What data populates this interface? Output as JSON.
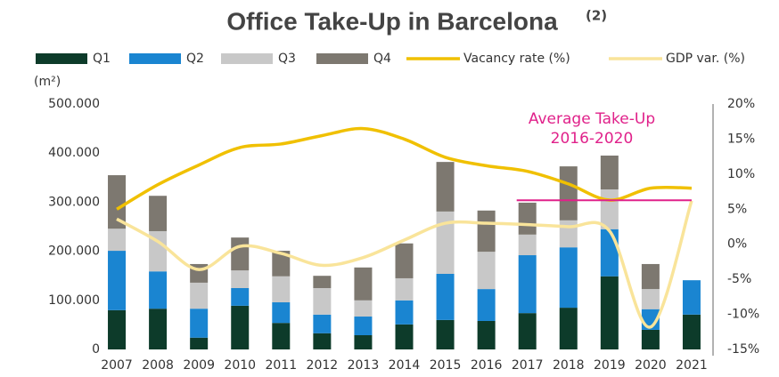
{
  "chart_data": {
    "type": "bar",
    "stacked": true,
    "title": "Office Take-Up in Barcelona",
    "title_note": "(2)",
    "y_unit": "(m²)",
    "categories": [
      "2007",
      "2008",
      "2009",
      "2010",
      "2011",
      "2012",
      "2013",
      "2014",
      "2015",
      "2016",
      "2017",
      "2018",
      "2019",
      "2020",
      "2021"
    ],
    "series": [
      {
        "name": "Q1",
        "color": "#0d3b2a",
        "values": [
          80000,
          83000,
          24000,
          89000,
          54000,
          33000,
          29000,
          51000,
          60000,
          58000,
          74000,
          85000,
          149000,
          40000,
          71000
        ]
      },
      {
        "name": "Q2",
        "color": "#1a85d1",
        "values": [
          121000,
          76000,
          59000,
          36000,
          42000,
          38000,
          38000,
          49000,
          94000,
          65000,
          118000,
          123000,
          96000,
          42000,
          70000
        ]
      },
      {
        "name": "Q3",
        "color": "#c8c8c8",
        "values": [
          45000,
          82000,
          53000,
          36000,
          53000,
          54000,
          33000,
          45000,
          127000,
          76000,
          42000,
          55000,
          81000,
          41000,
          null
        ]
      },
      {
        "name": "Q4",
        "color": "#7d7870",
        "values": [
          109000,
          72000,
          38000,
          67000,
          52000,
          25000,
          67000,
          71000,
          101000,
          84000,
          65000,
          110000,
          69000,
          51000,
          null
        ]
      },
      {
        "name": "Vacancy rate (%)",
        "color": "#f0c000",
        "type": "line",
        "axis": "y2",
        "values": [
          5,
          8.5,
          11.3,
          13.8,
          14.3,
          15.5,
          16.5,
          15,
          12.4,
          11.2,
          10.4,
          8.6,
          6.3,
          8,
          8
        ]
      },
      {
        "name": "GDP var. (%)",
        "color": "#f9e49a",
        "type": "line",
        "axis": "y2",
        "values": [
          3.6,
          0.4,
          -3.6,
          -0.3,
          -1.3,
          -3,
          -1.9,
          0.6,
          3,
          3,
          2.8,
          2.5,
          1.9,
          -11.8,
          6.2
        ]
      }
    ],
    "annotation": [
      "Average Take-Up",
      "2016-2020"
    ],
    "average_takeup": 304000,
    "average_color": "#e0218a",
    "ylim": [
      0,
      500000
    ],
    "yticks": [
      0,
      {
        "value": 100000,
        "label": "100.000"
      },
      {
        "value": 200000,
        "label": "200.000"
      },
      {
        "value": 300000,
        "label": "300.000"
      },
      {
        "value": 400000,
        "label": "400.000"
      },
      {
        "value": 500000,
        "label": "500.000"
      }
    ],
    "y2lim": [
      -15,
      20
    ],
    "y2ticks": [
      {
        "value": -15,
        "label": "-15%"
      },
      {
        "value": -10,
        "label": "-10%"
      },
      {
        "value": -5,
        "label": "-5%"
      },
      {
        "value": 0,
        "label": "0%"
      },
      {
        "value": 5,
        "label": "5%"
      },
      {
        "value": 10,
        "label": "10%"
      },
      {
        "value": 15,
        "label": "15%"
      },
      {
        "value": 20,
        "label": "20%"
      }
    ]
  }
}
